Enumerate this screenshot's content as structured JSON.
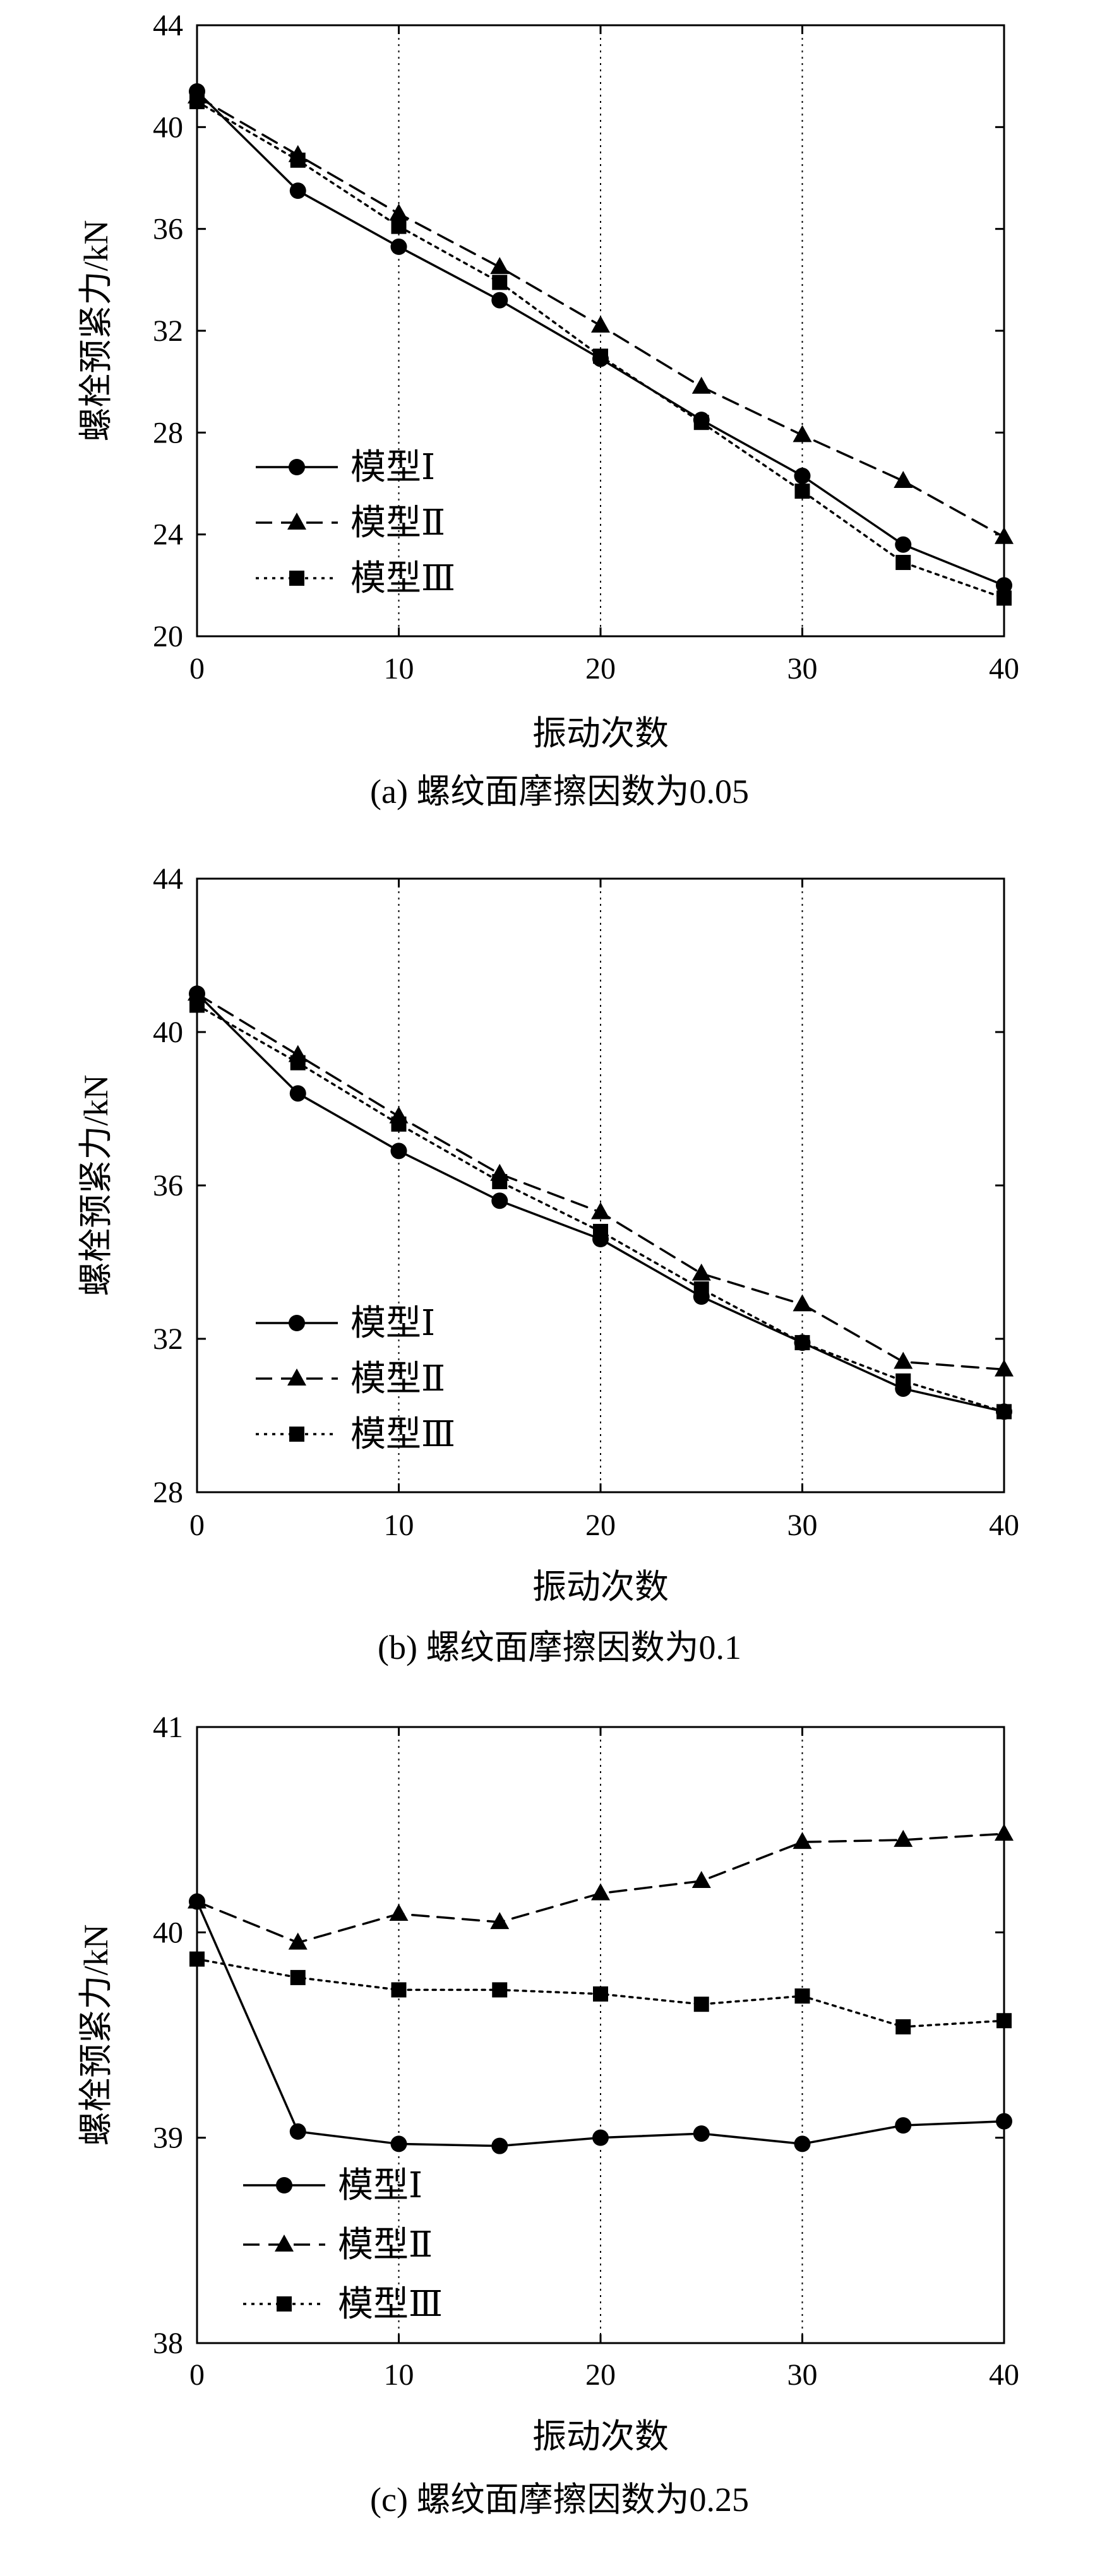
{
  "chart_data": [
    {
      "type": "line",
      "caption": "(a) 螺纹面摩擦因数为0.05",
      "xlabel": "振动次数",
      "ylabel": "螺栓预紧力/kN",
      "x": [
        0,
        5,
        10,
        15,
        20,
        25,
        30,
        35,
        40
      ],
      "xticks": [
        0,
        10,
        20,
        30,
        40
      ],
      "xlim": [
        0,
        40
      ],
      "yticks": [
        20,
        24,
        28,
        32,
        36,
        40,
        44
      ],
      "ylim": [
        20,
        44
      ],
      "grid": "vertical dotted",
      "legend_position": "lower-left",
      "series": [
        {
          "name": "模型Ⅰ",
          "marker": "circle",
          "dash": "solid",
          "values": [
            41.4,
            37.5,
            35.3,
            33.2,
            30.9,
            28.5,
            26.3,
            23.6,
            22.0
          ]
        },
        {
          "name": "模型Ⅱ",
          "marker": "triangle",
          "dash": "dashed",
          "values": [
            41.2,
            38.9,
            36.6,
            34.5,
            32.2,
            29.8,
            27.9,
            26.1,
            23.9
          ]
        },
        {
          "name": "模型Ⅲ",
          "marker": "square",
          "dash": "dotted",
          "values": [
            41.0,
            38.7,
            36.1,
            33.9,
            31.0,
            28.4,
            25.7,
            22.9,
            21.5
          ]
        }
      ]
    },
    {
      "type": "line",
      "caption": "(b) 螺纹面摩擦因数为0.1",
      "xlabel": "振动次数",
      "ylabel": "螺栓预紧力/kN",
      "x": [
        0,
        5,
        10,
        15,
        20,
        25,
        30,
        35,
        40
      ],
      "xticks": [
        0,
        10,
        20,
        30,
        40
      ],
      "xlim": [
        0,
        40
      ],
      "yticks": [
        28,
        32,
        36,
        40,
        44
      ],
      "ylim": [
        28,
        44
      ],
      "grid": "vertical dotted",
      "legend_position": "lower-left",
      "series": [
        {
          "name": "模型Ⅰ",
          "marker": "circle",
          "dash": "solid",
          "values": [
            41.0,
            38.4,
            36.9,
            35.6,
            34.6,
            33.1,
            31.9,
            30.7,
            30.1
          ]
        },
        {
          "name": "模型Ⅱ",
          "marker": "triangle",
          "dash": "dashed",
          "values": [
            41.0,
            39.4,
            37.8,
            36.3,
            35.3,
            33.7,
            32.9,
            31.4,
            31.2
          ]
        },
        {
          "name": "模型Ⅲ",
          "marker": "square",
          "dash": "dotted",
          "values": [
            40.7,
            39.2,
            37.6,
            36.1,
            34.8,
            33.3,
            31.9,
            30.9,
            30.1
          ]
        }
      ]
    },
    {
      "type": "line",
      "caption": "(c) 螺纹面摩擦因数为0.25",
      "xlabel": "振动次数",
      "ylabel": "螺栓预紧力/kN",
      "x": [
        0,
        5,
        10,
        15,
        20,
        25,
        30,
        35,
        40
      ],
      "xticks": [
        0,
        10,
        20,
        30,
        40
      ],
      "xlim": [
        0,
        40
      ],
      "yticks": [
        38,
        39,
        40,
        41
      ],
      "ylim": [
        38,
        41
      ],
      "grid": "vertical dotted",
      "legend_position": "lower-left",
      "series": [
        {
          "name": "模型Ⅰ",
          "marker": "circle",
          "dash": "solid",
          "values": [
            40.15,
            39.03,
            38.97,
            38.96,
            39.0,
            39.02,
            38.97,
            39.06,
            39.08
          ]
        },
        {
          "name": "模型Ⅱ",
          "marker": "triangle",
          "dash": "dashed",
          "values": [
            40.15,
            39.95,
            40.09,
            40.05,
            40.19,
            40.25,
            40.44,
            40.45,
            40.48
          ]
        },
        {
          "name": "模型Ⅲ",
          "marker": "square",
          "dash": "dotted",
          "values": [
            39.87,
            39.78,
            39.72,
            39.72,
            39.7,
            39.65,
            39.69,
            39.54,
            39.57
          ]
        }
      ]
    }
  ]
}
